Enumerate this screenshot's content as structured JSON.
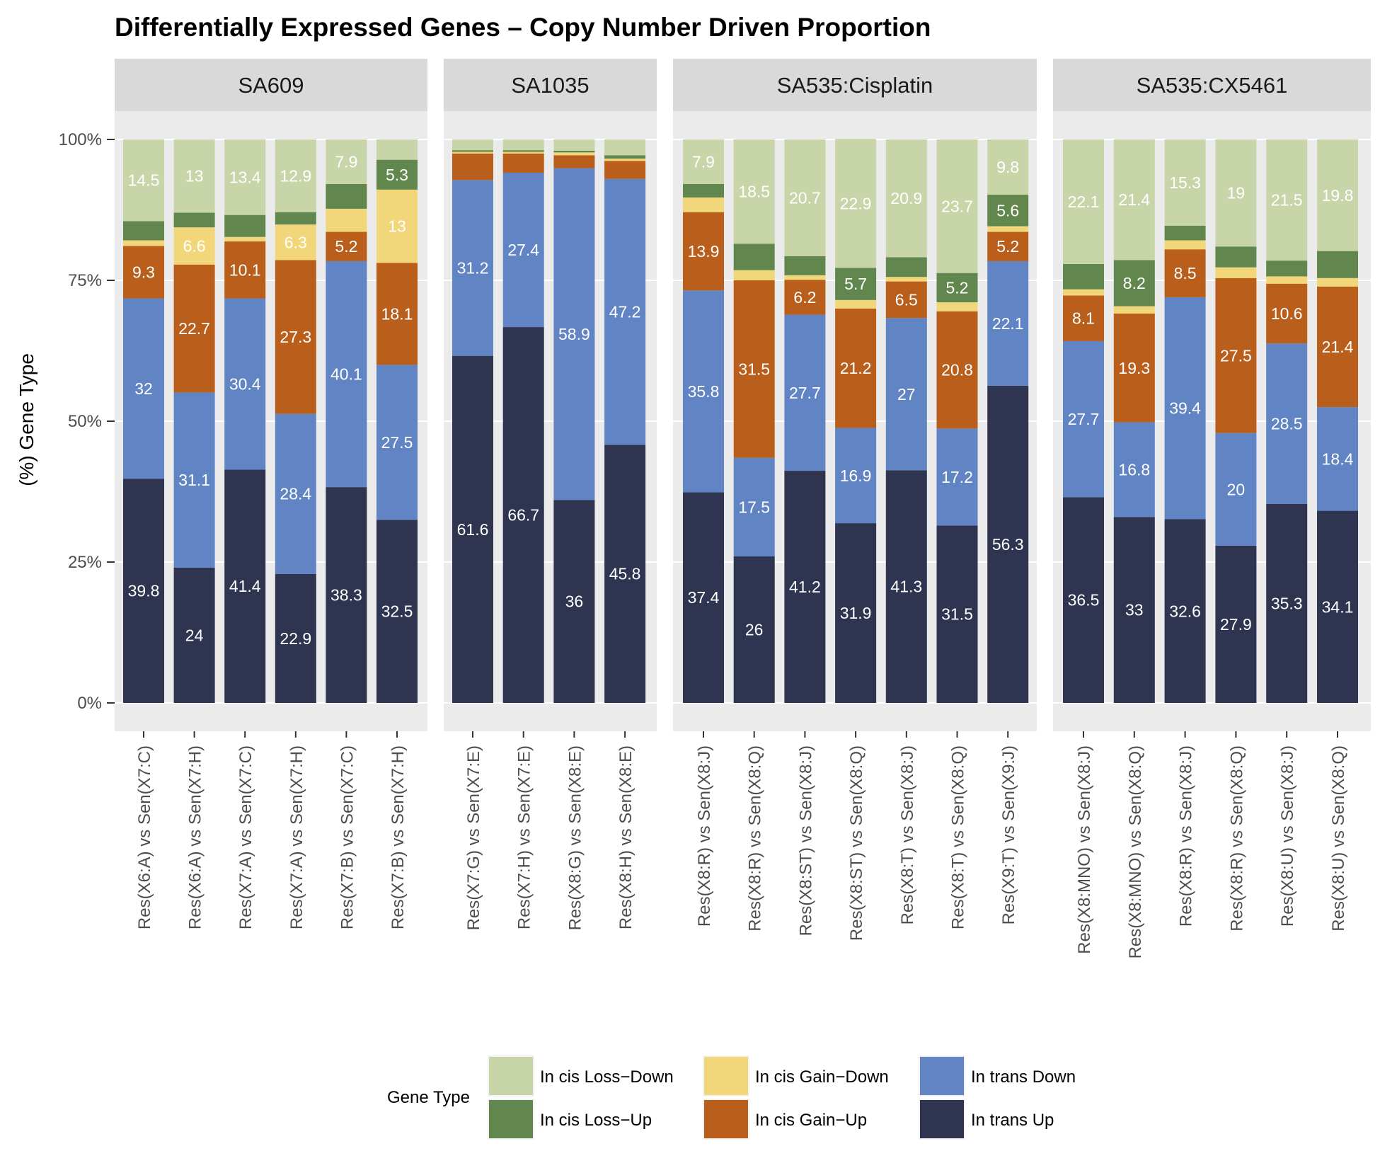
{
  "chart_data": {
    "type": "bar",
    "stacked": true,
    "title": "Differentially Expressed Genes – Copy Number Driven Proportion",
    "ylabel": "(%) Gene Type",
    "xlabel": "",
    "ylim": [
      0,
      100
    ],
    "yticks": [
      "0%",
      "25%",
      "50%",
      "75%",
      "100%"
    ],
    "legend": {
      "title": "Gene Type",
      "position": "bottom",
      "entries": [
        "In cis Loss−Down",
        "In cis Loss−Up",
        "In cis Gain−Down",
        "In cis Gain−Up",
        "In trans Down",
        "In trans Up"
      ]
    },
    "series_order_bottom_to_top": [
      "In trans Up",
      "In trans Down",
      "In cis Gain−Up",
      "In cis Gain−Down",
      "In cis Loss−Up",
      "In cis Loss−Down"
    ],
    "colors": {
      "In cis Loss−Down": "#c8d5a8",
      "In cis Loss−Up": "#62874e",
      "In cis Gain−Down": "#f2d77a",
      "In cis Gain−Up": "#b95e1b",
      "In trans Down": "#6184c4",
      "In trans Up": "#2f3450"
    },
    "facets": [
      {
        "name": "SA609",
        "bars": [
          {
            "category": "Res(X6:A) vs Sen(X7:C)",
            "values": {
              "In trans Up": 39.8,
              "In trans Down": 32,
              "In cis Gain−Up": 9.3,
              "In cis Gain−Down": 1,
              "In cis Loss−Up": 3.4,
              "In cis Loss−Down": 14.5
            },
            "labels": {
              "In trans Up": "39.8",
              "In trans Down": "32",
              "In cis Gain−Up": "9.3",
              "In cis Loss−Down": "14.5"
            }
          },
          {
            "category": "Res(X6:A) vs Sen(X7:H)",
            "values": {
              "In trans Up": 24,
              "In trans Down": 31.1,
              "In cis Gain−Up": 22.7,
              "In cis Gain−Down": 6.6,
              "In cis Loss−Up": 2.6,
              "In cis Loss−Down": 13
            },
            "labels": {
              "In trans Up": "24",
              "In trans Down": "31.1",
              "In cis Gain−Up": "22.7",
              "In cis Gain−Down": "6.6",
              "In cis Loss−Down": "13"
            }
          },
          {
            "category": "Res(X7:A) vs Sen(X7:C)",
            "values": {
              "In trans Up": 41.4,
              "In trans Down": 30.4,
              "In cis Gain−Up": 10.1,
              "In cis Gain−Down": 0.8,
              "In cis Loss−Up": 3.9,
              "In cis Loss−Down": 13.4
            },
            "labels": {
              "In trans Up": "41.4",
              "In trans Down": "30.4",
              "In cis Gain−Up": "10.1",
              "In cis Loss−Down": "13.4"
            }
          },
          {
            "category": "Res(X7:A) vs Sen(X7:H)",
            "values": {
              "In trans Up": 22.9,
              "In trans Down": 28.4,
              "In cis Gain−Up": 27.3,
              "In cis Gain−Down": 6.3,
              "In cis Loss−Up": 2.2,
              "In cis Loss−Down": 12.9
            },
            "labels": {
              "In trans Up": "22.9",
              "In trans Down": "28.4",
              "In cis Gain−Up": "27.3",
              "In cis Gain−Down": "6.3",
              "In cis Loss−Down": "12.9"
            }
          },
          {
            "category": "Res(X7:B) vs Sen(X7:C)",
            "values": {
              "In trans Up": 38.3,
              "In trans Down": 40.1,
              "In cis Gain−Up": 5.2,
              "In cis Gain−Down": 4.1,
              "In cis Loss−Up": 4.4,
              "In cis Loss−Down": 7.9
            },
            "labels": {
              "In trans Up": "38.3",
              "In trans Down": "40.1",
              "In cis Gain−Up": "5.2",
              "In cis Loss−Down": "7.9"
            }
          },
          {
            "category": "Res(X7:B) vs Sen(X7:H)",
            "values": {
              "In trans Up": 32.5,
              "In trans Down": 27.5,
              "In cis Gain−Up": 18.1,
              "In cis Gain−Down": 13,
              "In cis Loss−Up": 5.3,
              "In cis Loss−Down": 3.6
            },
            "labels": {
              "In trans Up": "32.5",
              "In trans Down": "27.5",
              "In cis Gain−Up": "18.1",
              "In cis Gain−Down": "13",
              "In cis Loss−Up": "5.3"
            }
          }
        ]
      },
      {
        "name": "SA1035",
        "bars": [
          {
            "category": "Res(X7:G) vs Sen(X7:E)",
            "values": {
              "In trans Up": 61.6,
              "In trans Down": 31.2,
              "In cis Gain−Up": 4.7,
              "In cis Gain−Down": 0.3,
              "In cis Loss−Up": 0.3,
              "In cis Loss−Down": 1.9
            },
            "labels": {
              "In trans Up": "61.6",
              "In trans Down": "31.2"
            }
          },
          {
            "category": "Res(X7:H) vs Sen(X7:E)",
            "values": {
              "In trans Up": 66.7,
              "In trans Down": 27.4,
              "In cis Gain−Up": 3.4,
              "In cis Gain−Down": 0.3,
              "In cis Loss−Up": 0.3,
              "In cis Loss−Down": 1.9
            },
            "labels": {
              "In trans Up": "66.7",
              "In trans Down": "27.4"
            }
          },
          {
            "category": "Res(X8:G) vs Sen(X8:E)",
            "values": {
              "In trans Up": 36,
              "In trans Down": 58.9,
              "In cis Gain−Up": 2.3,
              "In cis Gain−Down": 0.5,
              "In cis Loss−Up": 0.3,
              "In cis Loss−Down": 2
            },
            "labels": {
              "In trans Up": "36",
              "In trans Down": "58.9"
            }
          },
          {
            "category": "Res(X8:H) vs Sen(X8:E)",
            "values": {
              "In trans Up": 45.8,
              "In trans Down": 47.2,
              "In cis Gain−Up": 3.2,
              "In cis Gain−Down": 0.4,
              "In cis Loss−Up": 0.6,
              "In cis Loss−Down": 2.8
            },
            "labels": {
              "In trans Up": "45.8",
              "In trans Down": "47.2"
            }
          }
        ]
      },
      {
        "name": "SA535:Cisplatin",
        "bars": [
          {
            "category": "Res(X8:R) vs Sen(X8:J)",
            "values": {
              "In trans Up": 37.4,
              "In trans Down": 35.8,
              "In cis Gain−Up": 13.9,
              "In cis Gain−Down": 2.6,
              "In cis Loss−Up": 2.4,
              "In cis Loss−Down": 7.9
            },
            "labels": {
              "In trans Up": "37.4",
              "In trans Down": "35.8",
              "In cis Gain−Up": "13.9",
              "In cis Loss−Down": "7.9"
            }
          },
          {
            "category": "Res(X8:R) vs Sen(X8:Q)",
            "values": {
              "In trans Up": 26,
              "In trans Down": 17.5,
              "In cis Gain−Up": 31.5,
              "In cis Gain−Down": 1.8,
              "In cis Loss−Up": 4.7,
              "In cis Loss−Down": 18.5
            },
            "labels": {
              "In trans Up": "26",
              "In trans Down": "17.5",
              "In cis Gain−Up": "31.5",
              "In cis Loss−Down": "18.5"
            }
          },
          {
            "category": "Res(X8:ST) vs Sen(X8:J)",
            "values": {
              "In trans Up": 41.2,
              "In trans Down": 27.7,
              "In cis Gain−Up": 6.2,
              "In cis Gain−Down": 0.8,
              "In cis Loss−Up": 3.4,
              "In cis Loss−Down": 20.7
            },
            "labels": {
              "In trans Up": "41.2",
              "In trans Down": "27.7",
              "In cis Gain−Up": "6.2",
              "In cis Loss−Down": "20.7"
            }
          },
          {
            "category": "Res(X8:ST) vs Sen(X8:Q)",
            "values": {
              "In trans Up": 31.9,
              "In trans Down": 16.9,
              "In cis Gain−Up": 21.2,
              "In cis Gain−Down": 1.5,
              "In cis Loss−Up": 5.7,
              "In cis Loss−Down": 22.9
            },
            "labels": {
              "In trans Up": "31.9",
              "In trans Down": "16.9",
              "In cis Gain−Up": "21.2",
              "In cis Loss−Up": "5.7",
              "In cis Loss−Down": "22.9"
            }
          },
          {
            "category": "Res(X8:T) vs Sen(X8:J)",
            "values": {
              "In trans Up": 41.3,
              "In trans Down": 27,
              "In cis Gain−Up": 6.5,
              "In cis Gain−Down": 0.8,
              "In cis Loss−Up": 3.5,
              "In cis Loss−Down": 20.9
            },
            "labels": {
              "In trans Up": "41.3",
              "In trans Down": "27",
              "In cis Gain−Up": "6.5",
              "In cis Loss−Down": "20.9"
            }
          },
          {
            "category": "Res(X8:T) vs Sen(X8:Q)",
            "values": {
              "In trans Up": 31.5,
              "In trans Down": 17.2,
              "In cis Gain−Up": 20.8,
              "In cis Gain−Down": 1.6,
              "In cis Loss−Up": 5.2,
              "In cis Loss−Down": 23.7
            },
            "labels": {
              "In trans Up": "31.5",
              "In trans Down": "17.2",
              "In cis Gain−Up": "20.8",
              "In cis Loss−Up": "5.2",
              "In cis Loss−Down": "23.7"
            }
          },
          {
            "category": "Res(X9:T) vs Sen(X9:J)",
            "values": {
              "In trans Up": 56.3,
              "In trans Down": 22.1,
              "In cis Gain−Up": 5.2,
              "In cis Gain−Down": 1,
              "In cis Loss−Up": 5.6,
              "In cis Loss−Down": 9.8
            },
            "labels": {
              "In trans Up": "56.3",
              "In trans Down": "22.1",
              "In cis Gain−Up": "5.2",
              "In cis Loss−Up": "5.6",
              "In cis Loss−Down": "9.8"
            }
          }
        ]
      },
      {
        "name": "SA535:CX5461",
        "bars": [
          {
            "category": "Res(X8:MNO) vs Sen(X8:J)",
            "values": {
              "In trans Up": 36.5,
              "In trans Down": 27.7,
              "In cis Gain−Up": 8.1,
              "In cis Gain−Down": 1.1,
              "In cis Loss−Up": 4.5,
              "In cis Loss−Down": 22.1
            },
            "labels": {
              "In trans Up": "36.5",
              "In trans Down": "27.7",
              "In cis Gain−Up": "8.1",
              "In cis Loss−Down": "22.1"
            }
          },
          {
            "category": "Res(X8:MNO) vs Sen(X8:Q)",
            "values": {
              "In trans Up": 33,
              "In trans Down": 16.8,
              "In cis Gain−Up": 19.3,
              "In cis Gain−Down": 1.3,
              "In cis Loss−Up": 8.2,
              "In cis Loss−Down": 21.4
            },
            "labels": {
              "In trans Up": "33",
              "In trans Down": "16.8",
              "In cis Gain−Up": "19.3",
              "In cis Loss−Up": "8.2",
              "In cis Loss−Down": "21.4"
            }
          },
          {
            "category": "Res(X8:R) vs Sen(X8:J)",
            "values": {
              "In trans Up": 32.6,
              "In trans Down": 39.4,
              "In cis Gain−Up": 8.5,
              "In cis Gain−Down": 1.6,
              "In cis Loss−Up": 2.6,
              "In cis Loss−Down": 15.3
            },
            "labels": {
              "In trans Up": "32.6",
              "In trans Down": "39.4",
              "In cis Gain−Up": "8.5",
              "In cis Loss−Down": "15.3"
            }
          },
          {
            "category": "Res(X8:R) vs Sen(X8:Q)",
            "values": {
              "In trans Up": 27.9,
              "In trans Down": 20,
              "In cis Gain−Up": 27.5,
              "In cis Gain−Down": 1.9,
              "In cis Loss−Up": 3.7,
              "In cis Loss−Down": 19
            },
            "labels": {
              "In trans Up": "27.9",
              "In trans Down": "20",
              "In cis Gain−Up": "27.5",
              "In cis Loss−Down": "19"
            }
          },
          {
            "category": "Res(X8:U) vs Sen(X8:J)",
            "values": {
              "In trans Up": 35.3,
              "In trans Down": 28.5,
              "In cis Gain−Up": 10.6,
              "In cis Gain−Down": 1.3,
              "In cis Loss−Up": 2.8,
              "In cis Loss−Down": 21.5
            },
            "labels": {
              "In trans Up": "35.3",
              "In trans Down": "28.5",
              "In cis Gain−Up": "10.6",
              "In cis Loss−Down": "21.5"
            }
          },
          {
            "category": "Res(X8:U) vs Sen(X8:Q)",
            "values": {
              "In trans Up": 34.1,
              "In trans Down": 18.4,
              "In cis Gain−Up": 21.4,
              "In cis Gain−Down": 1.5,
              "In cis Loss−Up": 4.8,
              "In cis Loss−Down": 19.8
            },
            "labels": {
              "In trans Up": "34.1",
              "In trans Down": "18.4",
              "In cis Gain−Up": "21.4",
              "In cis Loss−Down": "19.8"
            }
          }
        ]
      }
    ]
  }
}
